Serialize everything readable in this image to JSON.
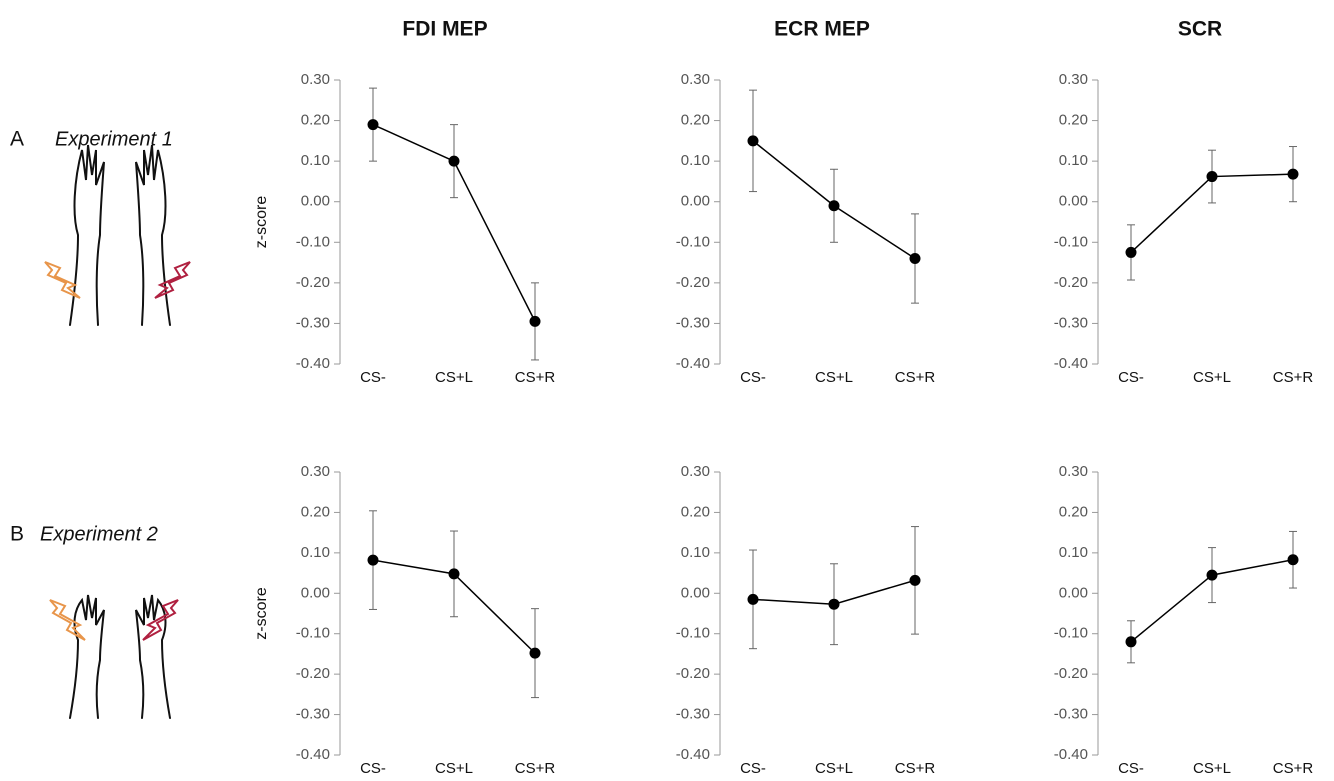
{
  "figure": {
    "columns": [
      "FDI MEP",
      "ECR MEP",
      "SCR"
    ],
    "rows": [
      {
        "letter": "A",
        "label": "Experiment 1"
      },
      {
        "letter": "B",
        "label": "Experiment 2"
      }
    ]
  },
  "chart_data": [
    {
      "type": "line",
      "ylabel": "z-score",
      "categories": [
        "CS-",
        "CS+L",
        "CS+R"
      ],
      "values": [
        0.19,
        0.1,
        -0.295
      ],
      "errors": [
        0.09,
        0.09,
        0.095
      ],
      "color": "#000000",
      "ylim": [
        -0.4,
        0.3
      ],
      "yticks": [
        {
          "value": -0.4,
          "label": "-0.40"
        },
        {
          "value": -0.3,
          "label": "-0.30"
        },
        {
          "value": -0.2,
          "label": "-0.20"
        },
        {
          "value": -0.1,
          "label": "-0.10"
        },
        {
          "value": 0,
          "label": "0.00"
        },
        {
          "value": 0.1,
          "label": "0.10"
        },
        {
          "value": 0.2,
          "label": "0.20"
        },
        {
          "value": 0.3,
          "label": "0.30"
        }
      ]
    },
    {
      "type": "line",
      "categories": [
        "CS-",
        "CS+L",
        "CS+R"
      ],
      "values": [
        0.15,
        -0.01,
        -0.14
      ],
      "errors": [
        0.125,
        0.09,
        0.11
      ],
      "color": "#000000",
      "ylim": [
        -0.4,
        0.3
      ],
      "yticks": [
        {
          "value": -0.4,
          "label": "-0.40"
        },
        {
          "value": -0.3,
          "label": "-0.30"
        },
        {
          "value": -0.2,
          "label": "-0.20"
        },
        {
          "value": -0.1,
          "label": "-0.10"
        },
        {
          "value": 0,
          "label": "0.00"
        },
        {
          "value": 0.1,
          "label": "0.10"
        },
        {
          "value": 0.2,
          "label": "0.20"
        },
        {
          "value": 0.3,
          "label": "0.30"
        }
      ]
    },
    {
      "type": "line",
      "categories": [
        "CS-",
        "CS+L",
        "CS+R"
      ],
      "values": [
        -0.125,
        0.062,
        0.068
      ],
      "errors": [
        0.068,
        0.065,
        0.068
      ],
      "color": "#000000",
      "ylim": [
        -0.4,
        0.3
      ],
      "yticks": [
        {
          "value": -0.4,
          "label": "-0.40"
        },
        {
          "value": -0.3,
          "label": "-0.30"
        },
        {
          "value": -0.2,
          "label": "-0.20"
        },
        {
          "value": -0.1,
          "label": "-0.10"
        },
        {
          "value": 0,
          "label": "0.00"
        },
        {
          "value": 0.1,
          "label": "0.10"
        },
        {
          "value": 0.2,
          "label": "0.20"
        },
        {
          "value": 0.3,
          "label": "0.30"
        }
      ]
    },
    {
      "type": "line",
      "ylabel": "z-score",
      "categories": [
        "CS-",
        "CS+L",
        "CS+R"
      ],
      "values": [
        0.082,
        0.048,
        -0.148
      ],
      "errors": [
        0.122,
        0.106,
        0.11
      ],
      "color": "#000000",
      "ylim": [
        -0.4,
        0.3
      ],
      "yticks": [
        {
          "value": -0.4,
          "label": "-0.40"
        },
        {
          "value": -0.3,
          "label": "-0.30"
        },
        {
          "value": -0.2,
          "label": "-0.20"
        },
        {
          "value": -0.1,
          "label": "-0.10"
        },
        {
          "value": 0,
          "label": "0.00"
        },
        {
          "value": 0.1,
          "label": "0.10"
        },
        {
          "value": 0.2,
          "label": "0.20"
        },
        {
          "value": 0.3,
          "label": "0.30"
        }
      ]
    },
    {
      "type": "line",
      "categories": [
        "CS-",
        "CS+L",
        "CS+R"
      ],
      "values": [
        -0.015,
        -0.027,
        0.032
      ],
      "errors": [
        0.122,
        0.1,
        0.133
      ],
      "color": "#000000",
      "ylim": [
        -0.4,
        0.3
      ],
      "yticks": [
        {
          "value": -0.4,
          "label": "-0.40"
        },
        {
          "value": -0.3,
          "label": "-0.30"
        },
        {
          "value": -0.2,
          "label": "-0.20"
        },
        {
          "value": -0.1,
          "label": "-0.10"
        },
        {
          "value": 0,
          "label": "0.00"
        },
        {
          "value": 0.1,
          "label": "0.10"
        },
        {
          "value": 0.2,
          "label": "0.20"
        },
        {
          "value": 0.3,
          "label": "0.30"
        }
      ]
    },
    {
      "type": "line",
      "categories": [
        "CS-",
        "CS+L",
        "CS+R"
      ],
      "values": [
        -0.12,
        0.045,
        0.083
      ],
      "errors": [
        0.052,
        0.068,
        0.07
      ],
      "color": "#000000",
      "ylim": [
        -0.4,
        0.3
      ],
      "yticks": [
        {
          "value": -0.4,
          "label": "-0.40"
        },
        {
          "value": -0.3,
          "label": "-0.30"
        },
        {
          "value": -0.2,
          "label": "-0.20"
        },
        {
          "value": -0.1,
          "label": "-0.10"
        },
        {
          "value": 0,
          "label": "0.00"
        },
        {
          "value": 0.1,
          "label": "0.10"
        },
        {
          "value": 0.2,
          "label": "0.20"
        },
        {
          "value": 0.3,
          "label": "0.30"
        }
      ]
    }
  ]
}
